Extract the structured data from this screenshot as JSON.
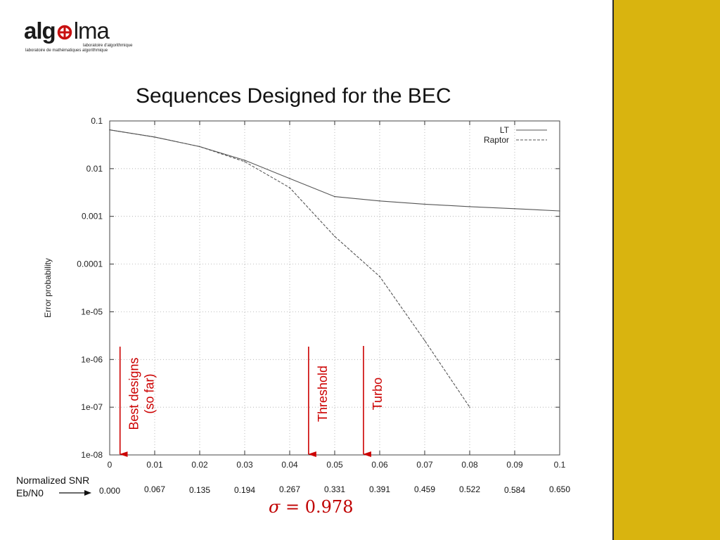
{
  "logo": {
    "word_start": "alg",
    "word_end": "lma",
    "subtitle_line1": "laboratoire d'algorithmique",
    "subtitle_line2": "laboratoire de mathématiques algorithmique"
  },
  "slide": {
    "title": "Sequences Designed for the BEC",
    "snr_label_line1": "Normalized SNR",
    "snr_label_line2": "Eb/N0",
    "sigma_symbol": "σ",
    "sigma_text": " = 0.978",
    "snr_ticks": [
      "0.000",
      "0.067",
      "0.135",
      "0.194",
      "0.267",
      "0.331",
      "0.391",
      "0.459",
      "0.522",
      "0.584",
      "0.650"
    ]
  },
  "colors": {
    "sidebar": "#d9b40f",
    "annotation": "#cc0000",
    "curve": "#555555"
  },
  "chart_data": {
    "type": "line",
    "title": "",
    "xlabel": "",
    "ylabel": "Error probability",
    "xlim": [
      0,
      0.1
    ],
    "ylim": [
      1e-08,
      0.1
    ],
    "yscale": "log",
    "grid": true,
    "legend": "top-right",
    "x_ticks": [
      "0",
      "0.01",
      "0.02",
      "0.03",
      "0.04",
      "0.05",
      "0.06",
      "0.07",
      "0.08",
      "0.09",
      "0.1"
    ],
    "y_ticks": [
      "0.1",
      "0.01",
      "0.001",
      "0.0001",
      "1e-05",
      "1e-06",
      "1e-07",
      "1e-08"
    ],
    "series": [
      {
        "name": "LT",
        "dash": "solid",
        "x": [
          0,
          0.01,
          0.02,
          0.03,
          0.04,
          0.05,
          0.06,
          0.07,
          0.08,
          0.09,
          0.1
        ],
        "y": [
          0.065,
          0.046,
          0.029,
          0.015,
          0.0062,
          0.0026,
          0.0021,
          0.0018,
          0.0016,
          0.00145,
          0.0013
        ]
      },
      {
        "name": "Raptor",
        "dash": "dashed",
        "x": [
          0,
          0.01,
          0.02,
          0.03,
          0.04,
          0.05,
          0.06,
          0.07,
          0.08
        ],
        "y": [
          0.065,
          0.046,
          0.029,
          0.014,
          0.004,
          0.00038,
          5.5e-05,
          2.5e-06,
          1e-07
        ]
      }
    ],
    "annotations": [
      {
        "label": "Best designs",
        "label2": "(so far)",
        "x": 0.0023
      },
      {
        "label": "Threshold",
        "label2": "",
        "x": 0.0442
      },
      {
        "label": "Turbo",
        "label2": "",
        "x": 0.0564
      }
    ]
  }
}
